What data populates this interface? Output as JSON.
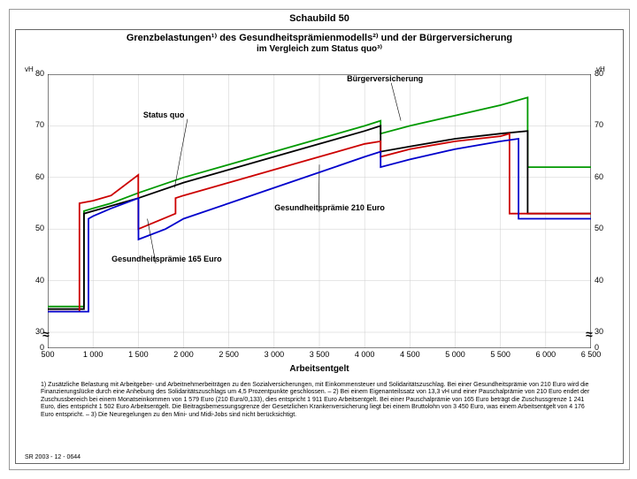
{
  "figure_label": "Schaubild 50",
  "title_line1": "Grenzbelastungen¹⁾ des Gesundheitsprämienmodells²⁾ und der Bürgerversicherung",
  "title_line2": "im Vergleich zum Status quo³⁾",
  "vh_label": "vH",
  "x_axis_label": "Arbeitsentgelt",
  "footnote_text": "1) Zusätzliche Belastung mit Arbeitgeber- und Arbeitnehmerbeiträgen zu den Sozialversicherungen, mit Einkommensteuer und Solidaritätszuschlag. Bei einer Gesundheitsprämie von 210 Euro wird die Finanzierungslücke durch eine Anhebung des Solidaritätszuschlags um 4,5 Prozentpunkte geschlossen. – 2) Bei einem Eigenanteilssatz von 13,3 vH und einer Pauschalprämie von 210 Euro endet der Zuschussbereich bei einem Monatseinkommen von 1 579 Euro (210 Euro/0,133), dies entspricht 1 911 Euro Arbeitsentgelt. Bei einer Pauschalprämie von 165 Euro beträgt die Zuschussgrenze 1 241 Euro, dies entspricht 1 502 Euro Arbeitsentgelt. Die Beitragsbemessungsgrenze der Gesetzlichen Krankenversicherung liegt bei einem Bruttolohn von 3 450 Euro, was einem Arbeitsentgelt von 4 176 Euro entspricht. – 3) Die Neuregelungen zu den Mini- und Midi-Jobs sind nicht berücksichtigt.",
  "footer_code": "SR 2003 - 12 - 0644",
  "chart": {
    "type": "line",
    "xlim": [
      500,
      6500
    ],
    "ylim_low": 0,
    "ylim_high": 80,
    "y_break_at": 30,
    "x_ticks": [
      500,
      1000,
      1500,
      2000,
      2500,
      3000,
      3500,
      4000,
      4500,
      5000,
      5500,
      6000,
      6500
    ],
    "x_tick_labels": [
      "500",
      "1 000",
      "1 500",
      "2 000",
      "2 500",
      "3 000",
      "3 500",
      "4 000",
      "4 500",
      "5 000",
      "5 500",
      "6 000",
      "6 500"
    ],
    "y_ticks": [
      0,
      30,
      40,
      50,
      60,
      70,
      80
    ],
    "background_color": "#ffffff",
    "grid_color": "#cccccc",
    "axis_color": "#000000",
    "line_width": 1.8,
    "series": [
      {
        "name": "Bürgerversicherung",
        "color": "#009900",
        "label_pos": {
          "x": 4000,
          "y": 79
        },
        "label_line_to": {
          "x": 4400,
          "y": 71
        },
        "points": [
          [
            500,
            35
          ],
          [
            900,
            35
          ],
          [
            900,
            53.5
          ],
          [
            1000,
            54
          ],
          [
            1200,
            55
          ],
          [
            1500,
            57
          ],
          [
            2000,
            60
          ],
          [
            2500,
            62.5
          ],
          [
            3000,
            65
          ],
          [
            3500,
            67.5
          ],
          [
            4000,
            70
          ],
          [
            4176,
            71
          ],
          [
            4176,
            68.5
          ],
          [
            4500,
            70
          ],
          [
            5000,
            72
          ],
          [
            5500,
            74
          ],
          [
            5800,
            75.5
          ],
          [
            5800,
            62
          ],
          [
            6000,
            62
          ],
          [
            6500,
            62
          ]
        ]
      },
      {
        "name": "Status quo",
        "color": "#000000",
        "label_pos": {
          "x": 1750,
          "y": 72
        },
        "label_line_to": {
          "x": 1900,
          "y": 58
        },
        "points": [
          [
            500,
            34.5
          ],
          [
            900,
            34.5
          ],
          [
            900,
            53
          ],
          [
            1000,
            53.5
          ],
          [
            1500,
            56
          ],
          [
            2000,
            59
          ],
          [
            2500,
            61.5
          ],
          [
            3000,
            64
          ],
          [
            3500,
            66.5
          ],
          [
            4000,
            69
          ],
          [
            4176,
            70
          ],
          [
            4176,
            65
          ],
          [
            4500,
            66
          ],
          [
            5000,
            67.5
          ],
          [
            5500,
            68.5
          ],
          [
            5800,
            69
          ],
          [
            5800,
            53
          ],
          [
            6000,
            53
          ],
          [
            6500,
            53
          ]
        ]
      },
      {
        "name": "Gesundheitsprämie 210 Euro",
        "color": "#cc0000",
        "label_pos": {
          "x": 3200,
          "y": 54
        },
        "label_line_to": {
          "x": 3500,
          "y": 62.5
        },
        "points": [
          [
            500,
            34
          ],
          [
            850,
            34
          ],
          [
            850,
            55
          ],
          [
            1000,
            55.5
          ],
          [
            1200,
            56.5
          ],
          [
            1500,
            60.5
          ],
          [
            1500,
            50
          ],
          [
            1911,
            53
          ],
          [
            1911,
            56
          ],
          [
            2000,
            56.5
          ],
          [
            2500,
            59
          ],
          [
            3000,
            61.5
          ],
          [
            3500,
            64
          ],
          [
            4000,
            66.5
          ],
          [
            4176,
            67
          ],
          [
            4176,
            64
          ],
          [
            4500,
            65.5
          ],
          [
            5000,
            67
          ],
          [
            5500,
            68
          ],
          [
            5600,
            68.5
          ],
          [
            5600,
            53
          ],
          [
            6000,
            53
          ],
          [
            6500,
            53
          ]
        ]
      },
      {
        "name": "Gesundheitsprämie 165 Euro",
        "color": "#0000cc",
        "label_pos": {
          "x": 1400,
          "y": 44
        },
        "label_line_to": {
          "x": 1600,
          "y": 52
        },
        "points": [
          [
            500,
            34
          ],
          [
            950,
            34
          ],
          [
            950,
            52
          ],
          [
            1000,
            52.5
          ],
          [
            1200,
            54
          ],
          [
            1502,
            56
          ],
          [
            1502,
            48
          ],
          [
            1800,
            50
          ],
          [
            2000,
            52
          ],
          [
            2500,
            55
          ],
          [
            3000,
            58
          ],
          [
            3500,
            61
          ],
          [
            4000,
            64
          ],
          [
            4176,
            65
          ],
          [
            4176,
            62
          ],
          [
            4500,
            63.5
          ],
          [
            5000,
            65.5
          ],
          [
            5500,
            67
          ],
          [
            5700,
            67.5
          ],
          [
            5700,
            52
          ],
          [
            6000,
            52
          ],
          [
            6500,
            52
          ]
        ]
      }
    ]
  }
}
